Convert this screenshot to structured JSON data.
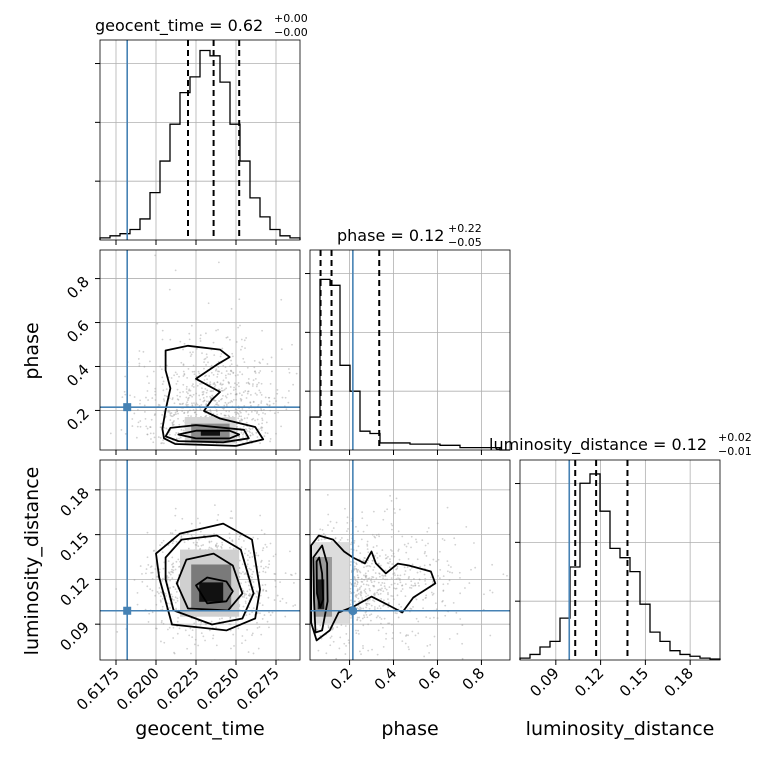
{
  "chart_data": {
    "type": "corner",
    "parameters": [
      "geocent_time",
      "phase",
      "luminosity_distance"
    ],
    "axis_labels": {
      "geocent_time": "geocent_time",
      "phase": "phase",
      "luminosity_distance": "luminosity_distance"
    },
    "titles": {
      "geocent_time": {
        "main": "geocent_time = 0.62",
        "sup": "+0.00",
        "sub": "−0.00"
      },
      "phase": {
        "main": "phase = 0.12",
        "sup": "+0.22",
        "sub": "−0.05"
      },
      "luminosity_distance": {
        "main": "luminosity_distance = 0.12",
        "sup": "+0.02",
        "sub": "−0.01"
      }
    },
    "ranges": {
      "geocent_time": [
        0.6165,
        0.629
      ],
      "phase": [
        0.02,
        0.93
      ],
      "luminosity_distance": [
        0.066,
        0.2
      ]
    },
    "ticks": {
      "geocent_time": {
        "values": [
          0.6175,
          0.62,
          0.6225,
          0.625,
          0.6275
        ],
        "labels": [
          "0.6175",
          "0.6200",
          "0.6225",
          "0.6250",
          "0.6275"
        ]
      },
      "phase": {
        "values": [
          0.2,
          0.4,
          0.6,
          0.8
        ],
        "labels": [
          "0.2",
          "0.4",
          "0.6",
          "0.8"
        ]
      },
      "luminosity_distance": {
        "values": [
          0.09,
          0.12,
          0.15,
          0.18
        ],
        "labels": [
          "0.09",
          "0.12",
          "0.15",
          "0.18"
        ]
      }
    },
    "truths": {
      "geocent_time": 0.6182,
      "phase": 0.215,
      "luminosity_distance": 0.099
    },
    "quantiles": {
      "geocent_time": [
        0.622,
        0.6236,
        0.6252
      ],
      "phase": [
        0.068,
        0.118,
        0.335
      ],
      "luminosity_distance": [
        0.103,
        0.117,
        0.138
      ]
    },
    "histograms": {
      "geocent_time": {
        "edges": [
          0.6165,
          0.617125,
          0.61775,
          0.618375,
          0.619,
          0.619625,
          0.62025,
          0.620875,
          0.6215,
          0.622125,
          0.62275,
          0.623375,
          0.624,
          0.624625,
          0.62525,
          0.625875,
          0.6265,
          0.627125,
          0.62775,
          0.628375,
          0.629
        ],
        "counts": [
          2,
          4,
          6,
          10,
          20,
          45,
          75,
          110,
          140,
          155,
          180,
          175,
          150,
          110,
          75,
          40,
          22,
          10,
          4,
          2
        ],
        "ymax": 190
      },
      "phase": {
        "edges": [
          0.02,
          0.0655,
          0.111,
          0.1565,
          0.202,
          0.2475,
          0.293,
          0.3385,
          0.384,
          0.4295,
          0.475,
          0.5205,
          0.566,
          0.6115,
          0.657,
          0.7025,
          0.748,
          0.7935,
          0.839,
          0.8845,
          0.93
        ],
        "counts": [
          28,
          145,
          140,
          72,
          50,
          16,
          14,
          6,
          6,
          6,
          5,
          5,
          5,
          4,
          4,
          2,
          2,
          2,
          2,
          0
        ],
        "ymax": 170
      },
      "luminosity_distance": {
        "edges": [
          0.066,
          0.0727,
          0.0794,
          0.0861,
          0.0928,
          0.0995,
          0.1062,
          0.1129,
          0.1196,
          0.1263,
          0.133,
          0.1397,
          0.1464,
          0.1531,
          0.1598,
          0.1665,
          0.1732,
          0.1799,
          0.1866,
          0.1933,
          0.2
        ],
        "counts": [
          2,
          6,
          14,
          20,
          45,
          100,
          190,
          200,
          160,
          120,
          110,
          95,
          60,
          30,
          20,
          10,
          6,
          4,
          2,
          1
        ],
        "ymax": 215
      }
    },
    "contours": [
      {
        "x": "geocent_time",
        "y": "phase",
        "scatter_center": [
          0.6235,
          0.24
        ],
        "scatter_spread": [
          0.0022,
          0.17
        ],
        "density_cells": [
          {
            "x": [
              0.6228,
              0.624
            ],
            "y": [
              0.085,
              0.11
            ],
            "shade": "#111111"
          },
          {
            "x": [
              0.6222,
              0.6246
            ],
            "y": [
              0.06,
              0.14
            ],
            "shade": "#8a8a8a"
          },
          {
            "x": [
              0.6218,
              0.625
            ],
            "y": [
              0.05,
              0.17
            ],
            "shade": "#d6d6d6"
          }
        ],
        "levels": [
          [
            [
              0.6214,
              0.0904
            ],
            [
              0.6225,
              0.073
            ],
            [
              0.6246,
              0.073
            ],
            [
              0.6252,
              0.0904
            ],
            [
              0.6246,
              0.108
            ],
            [
              0.6225,
              0.108
            ]
          ],
          [
            [
              0.6206,
              0.0818
            ],
            [
              0.6214,
              0.0603
            ],
            [
              0.6242,
              0.0552
            ],
            [
              0.6258,
              0.0732
            ],
            [
              0.6255,
              0.1118
            ],
            [
              0.6225,
              0.1333
            ],
            [
              0.6209,
              0.1204
            ]
          ],
          [
            [
              0.6205,
              0.0732
            ],
            [
              0.6212,
              0.0474
            ],
            [
              0.625,
              0.0388
            ],
            [
              0.6267,
              0.0681
            ],
            [
              0.6262,
              0.1247
            ],
            [
              0.624,
              0.1633
            ],
            [
              0.623,
              0.1977
            ],
            [
              0.6235,
              0.2493
            ],
            [
              0.624,
              0.2837
            ],
            [
              0.6225,
              0.3439
            ],
            [
              0.6238,
              0.4083
            ],
            [
              0.6246,
              0.4427
            ],
            [
              0.624,
              0.477
            ],
            [
              0.622,
              0.4942
            ],
            [
              0.6206,
              0.4727
            ],
            [
              0.6206,
              0.3826
            ],
            [
              0.6209,
              0.3009
            ],
            [
              0.6206,
              0.202
            ],
            [
              0.6204,
              0.1161
            ]
          ]
        ]
      },
      {
        "x": "geocent_time",
        "y": "luminosity_distance",
        "scatter_center": [
          0.6235,
          0.118
        ],
        "scatter_spread": [
          0.002,
          0.018
        ],
        "density_cells": [
          {
            "x": [
              0.6227,
              0.6242
            ],
            "y": [
              0.105,
              0.118
            ],
            "shade": "#111111"
          },
          {
            "x": [
              0.6222,
              0.6247
            ],
            "y": [
              0.1,
              0.13
            ],
            "shade": "#7a7a7a"
          },
          {
            "x": [
              0.6215,
              0.6252
            ],
            "y": [
              0.095,
              0.14
            ],
            "shade": "#d0d0d0"
          }
        ],
        "levels": [
          [
            [
              0.6225,
              0.116
            ],
            [
              0.6232,
              0.104
            ],
            [
              0.6244,
              0.1053
            ],
            [
              0.6248,
              0.112
            ],
            [
              0.6244,
              0.1186
            ],
            [
              0.6232,
              0.1213
            ]
          ],
          [
            [
              0.6213,
              0.1173
            ],
            [
              0.622,
              0.1005
            ],
            [
              0.6245,
              0.0992
            ],
            [
              0.6254,
              0.1106
            ],
            [
              0.6248,
              0.1293
            ],
            [
              0.6236,
              0.1373
            ],
            [
              0.6219,
              0.1333
            ]
          ],
          [
            [
              0.6206,
              0.12
            ],
            [
              0.6211,
              0.0992
            ],
            [
              0.6235,
              0.0898
            ],
            [
              0.6254,
              0.0938
            ],
            [
              0.6261,
              0.1106
            ],
            [
              0.6253,
              0.14
            ],
            [
              0.6238,
              0.1494
            ],
            [
              0.6216,
              0.1467
            ],
            [
              0.6206,
              0.1347
            ]
          ],
          [
            [
              0.6202,
              0.1213
            ],
            [
              0.621,
              0.0898
            ],
            [
              0.6244,
              0.0858
            ],
            [
              0.6262,
              0.0938
            ],
            [
              0.6265,
              0.1133
            ],
            [
              0.626,
              0.1467
            ],
            [
              0.6242,
              0.1574
            ],
            [
              0.6215,
              0.1507
            ],
            [
              0.62,
              0.1373
            ]
          ]
        ]
      },
      {
        "x": "phase",
        "y": "luminosity_distance",
        "scatter_center": [
          0.28,
          0.116
        ],
        "scatter_spread": [
          0.22,
          0.02
        ],
        "density_cells": [
          {
            "x": [
              0.055,
              0.085
            ],
            "y": [
              0.1,
              0.12
            ],
            "shade": "#222222"
          },
          {
            "x": [
              0.04,
              0.12
            ],
            "y": [
              0.095,
              0.135
            ],
            "shade": "#9a9a9a"
          },
          {
            "x": [
              0.03,
              0.2
            ],
            "y": [
              0.09,
              0.145
            ],
            "shade": "#dcdcdc"
          }
        ],
        "levels": [
          [
            [
              0.05,
              0.132
            ],
            [
              0.062,
              0.1347
            ],
            [
              0.075,
              0.124
            ],
            [
              0.08,
              0.1066
            ],
            [
              0.066,
              0.1012
            ],
            [
              0.052,
              0.1106
            ]
          ],
          [
            [
              0.035,
              0.1347
            ],
            [
              0.075,
              0.1427
            ],
            [
              0.098,
              0.1307
            ],
            [
              0.1,
              0.1053
            ],
            [
              0.075,
              0.0858
            ],
            [
              0.045,
              0.0844
            ],
            [
              0.038,
              0.1066
            ]
          ],
          [
            [
              0.025,
              0.1427
            ],
            [
              0.06,
              0.1494
            ],
            [
              0.125,
              0.1467
            ],
            [
              0.175,
              0.1387
            ],
            [
              0.215,
              0.1347
            ],
            [
              0.27,
              0.1307
            ],
            [
              0.3,
              0.1387
            ],
            [
              0.32,
              0.1307
            ],
            [
              0.365,
              0.124
            ],
            [
              0.42,
              0.1306
            ],
            [
              0.47,
              0.1293
            ],
            [
              0.57,
              0.1253
            ],
            [
              0.59,
              0.1173
            ],
            [
              0.49,
              0.1079
            ],
            [
              0.44,
              0.0978
            ],
            [
              0.38,
              0.1025
            ],
            [
              0.3,
              0.1085
            ],
            [
              0.22,
              0.1019
            ],
            [
              0.15,
              0.0978
            ],
            [
              0.11,
              0.0858
            ],
            [
              0.05,
              0.0791
            ],
            [
              0.025,
              0.0911
            ]
          ]
        ]
      }
    ]
  },
  "colors": {
    "truth": "#4682b4",
    "hist": "#000000",
    "scatter": "#9a9a9a"
  }
}
